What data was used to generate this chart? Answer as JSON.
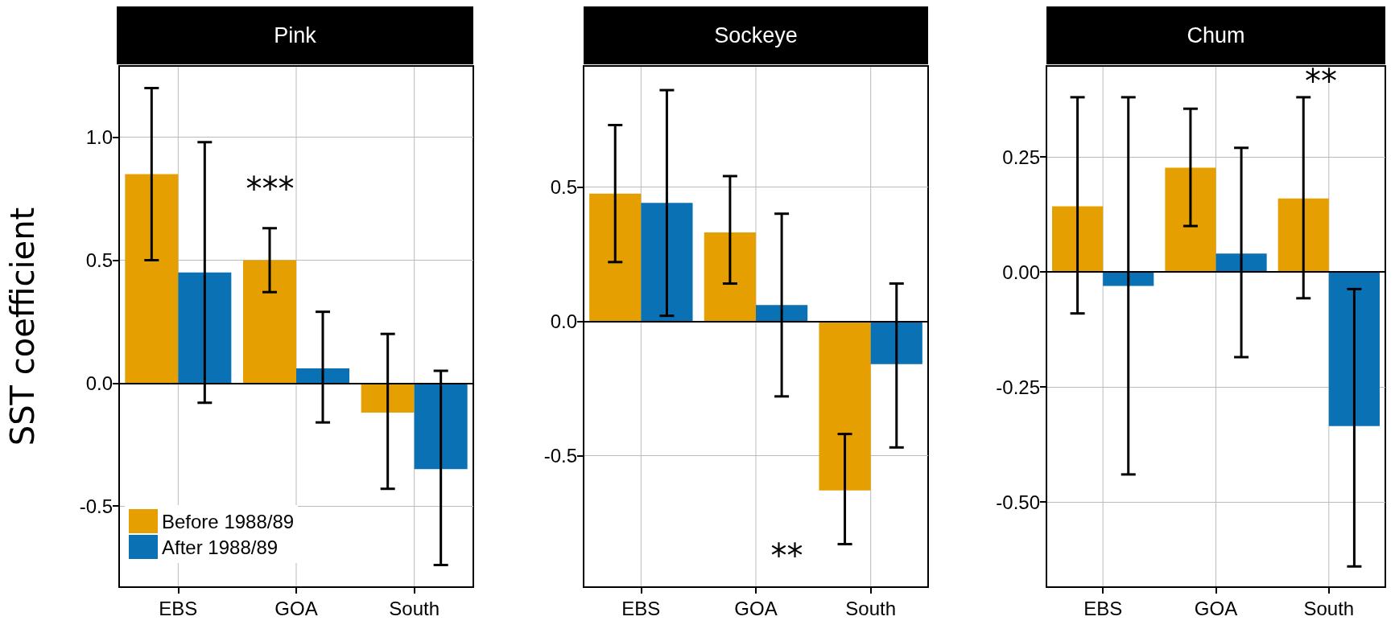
{
  "chart_data": [
    {
      "type": "bar",
      "title": "Pink",
      "ylabel": "SST coefficient",
      "categories": [
        "EBS",
        "GOA",
        "South"
      ],
      "ylim": [
        -0.83,
        1.29
      ],
      "yticks": [
        {
          "value": 1.0,
          "label": "1.0"
        },
        {
          "value": 0.5,
          "label": "0.5"
        },
        {
          "value": 0,
          "label": "0.0"
        },
        {
          "value": -0.5,
          "label": "-0.5"
        }
      ],
      "grid": true,
      "legend": "bottom left",
      "series": [
        {
          "name": "Before 1988/89",
          "color": "#e69f00",
          "values": [
            0.85,
            0.5,
            -0.12
          ],
          "errors": [
            [
              0.5,
              1.2
            ],
            [
              0.37,
              0.63
            ],
            [
              -0.43,
              0.2
            ]
          ]
        },
        {
          "name": "After 1988/89",
          "color": "#0a72b4",
          "values": [
            0.45,
            0.06,
            -0.35
          ],
          "errors": [
            [
              -0.08,
              0.98
            ],
            [
              -0.16,
              0.29
            ],
            [
              -0.74,
              0.05
            ]
          ]
        }
      ],
      "ref_lines": [
        {
          "axis": "y",
          "value": 0,
          "color": "#000000"
        }
      ],
      "annotations": [
        "***"
      ]
    },
    {
      "type": "bar",
      "title": "Sockeye",
      "categories": [
        "EBS",
        "GOA",
        "South"
      ],
      "ylim": [
        -0.99,
        0.95
      ],
      "yticks": [
        {
          "value": 0.5,
          "label": "0.5"
        },
        {
          "value": 0,
          "label": "0.0"
        },
        {
          "value": -0.5,
          "label": "-0.5"
        }
      ],
      "grid": true,
      "series": [
        {
          "color": "#e69f00",
          "values": [
            0.475,
            0.33,
            -0.63
          ],
          "errors": [
            [
              0.22,
              0.73
            ],
            [
              0.14,
              0.54
            ],
            [
              -0.83,
              -0.42
            ]
          ]
        },
        {
          "color": "#0a72b4",
          "values": [
            0.44,
            0.06,
            -0.16
          ],
          "errors": [
            [
              0.02,
              0.86
            ],
            [
              -0.28,
              0.4
            ],
            [
              -0.47,
              0.14
            ]
          ]
        }
      ],
      "ref_lines": [
        {
          "axis": "y",
          "value": 0,
          "color": "#000000"
        }
      ],
      "annotations": [
        "**"
      ]
    },
    {
      "type": "bar",
      "title": "Chum",
      "categories": [
        "EBS",
        "GOA",
        "South"
      ],
      "ylim": [
        -0.685,
        0.448
      ],
      "yticks": [
        {
          "value": 0.25,
          "label": "0.25"
        },
        {
          "value": 0,
          "label": "0.00"
        },
        {
          "value": -0.25,
          "label": "-0.25"
        },
        {
          "value": -0.5,
          "label": "-0.50"
        }
      ],
      "grid": true,
      "series": [
        {
          "color": "#e69f00",
          "values": [
            0.143,
            0.227,
            0.16
          ],
          "errors": [
            [
              -0.09,
              0.38
            ],
            [
              0.1,
              0.355
            ],
            [
              -0.057,
              0.38
            ]
          ]
        },
        {
          "color": "#0a72b4",
          "values": [
            -0.03,
            0.04,
            -0.335
          ],
          "errors": [
            [
              -0.44,
              0.38
            ],
            [
              -0.185,
              0.27
            ],
            [
              -0.64,
              -0.037
            ]
          ]
        }
      ],
      "ref_lines": [
        {
          "axis": "y",
          "value": 0,
          "color": "#000000"
        }
      ],
      "annotations": [
        "**"
      ]
    }
  ]
}
